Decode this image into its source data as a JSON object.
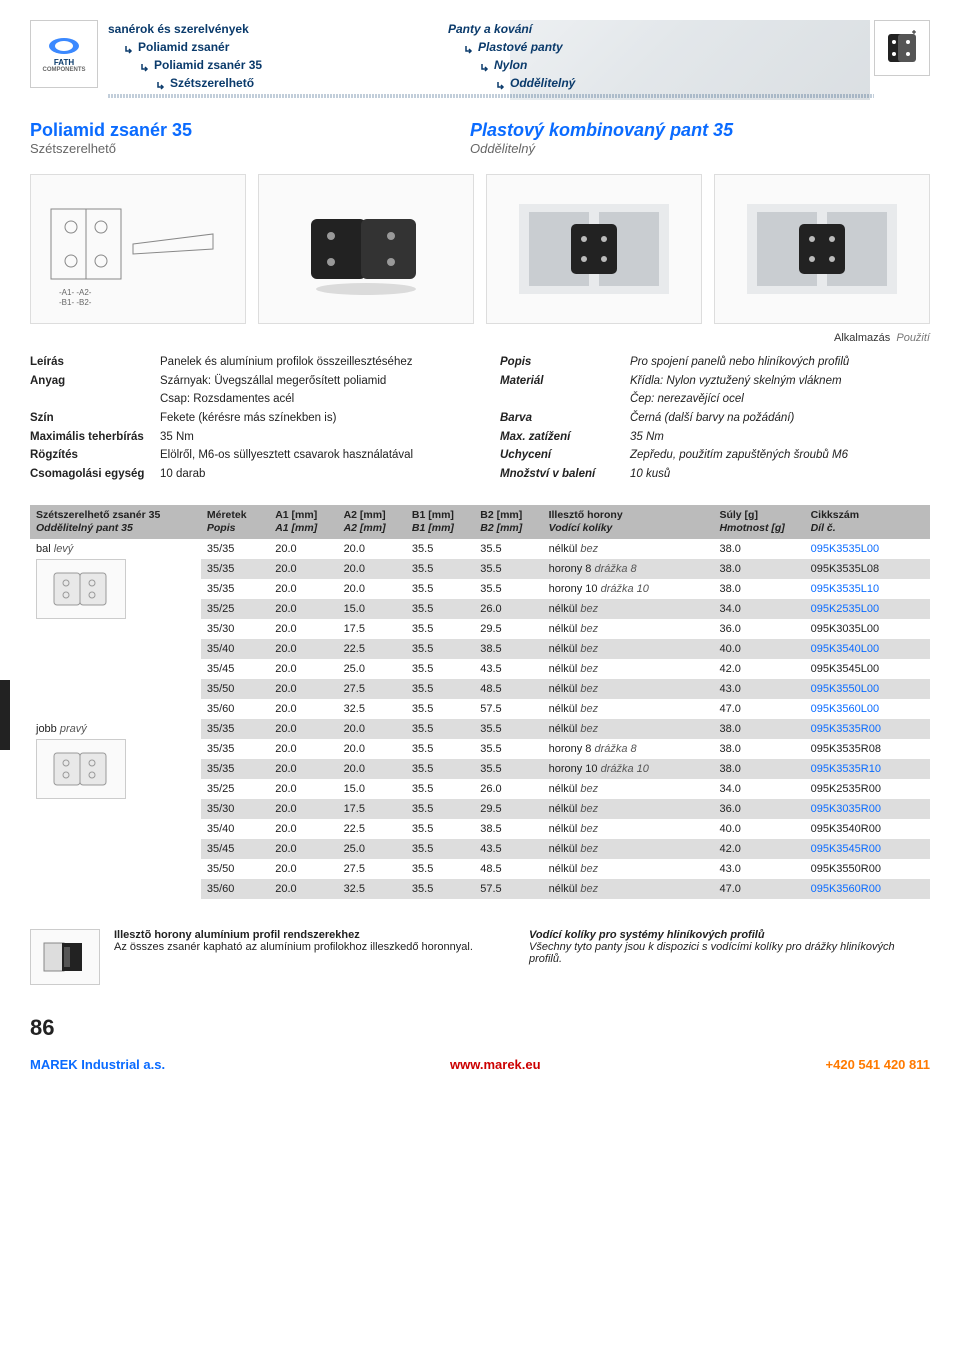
{
  "header": {
    "logo_line1": "FATH",
    "logo_line2": "COMPONENTS",
    "left": [
      "sanérok és szerelvények",
      "Poliamid zsanér",
      "Poliamid zsanér 35",
      "Szétszerelhető"
    ],
    "right": [
      "Panty a kování",
      "Plastové panty",
      "Nylon",
      "Oddělitelný"
    ]
  },
  "titles": {
    "hu_main": "Poliamid zsanér 35",
    "hu_sub": "Szétszerelhető",
    "cz_main": "Plastový kombinovaný pant 35",
    "cz_sub": "Oddělitelný"
  },
  "use_label": {
    "hu": "Alkalmazás",
    "cz": "Použití"
  },
  "spec_hu": {
    "rows": [
      {
        "label": "Leírás",
        "value": "Panelek és alumínium profilok összeillesztéséhez"
      },
      {
        "label": "Anyag",
        "value": "Szárnyak: Üvegszállal megerősített poliamid"
      },
      {
        "label": "",
        "value": "Csap: Rozsdamentes acél"
      },
      {
        "label": "Szín",
        "value": "Fekete (kérésre más színekben is)"
      },
      {
        "label": "Maximális teherbírás",
        "value": "35 Nm"
      },
      {
        "label": "Rögzítés",
        "value": "Elölről, M6-os süllyesztett csavarok használatával"
      },
      {
        "label": "Csomagolási egység",
        "value": "10 darab"
      }
    ]
  },
  "spec_cz": {
    "rows": [
      {
        "label": "Popis",
        "value": "Pro spojení panelů nebo hliníkových profilů"
      },
      {
        "label": "Materiál",
        "value": "Křídla: Nylon vyztužený skelným vláknem"
      },
      {
        "label": "",
        "value": "Čep: nerezavějící ocel"
      },
      {
        "label": "Barva",
        "value": "Černá (další barvy na požádání)"
      },
      {
        "label": "Max. zatížení",
        "value": "35 Nm"
      },
      {
        "label": "Uchycení",
        "value": "Zepředu, použitím zapuštěných šroubů M6"
      },
      {
        "label": "Množství v balení",
        "value": "10 kusů"
      }
    ]
  },
  "table": {
    "headers": [
      {
        "hu": "Szétszerelhető zsanér 35",
        "cz": "Oddělitelný pant 35"
      },
      {
        "hu": "Méretek",
        "cz": "Popis"
      },
      {
        "hu": "A1 [mm]",
        "cz": "A1 [mm]"
      },
      {
        "hu": "A2 [mm]",
        "cz": "A2 [mm]"
      },
      {
        "hu": "B1 [mm]",
        "cz": "B1 [mm]"
      },
      {
        "hu": "B2 [mm]",
        "cz": "B2 [mm]"
      },
      {
        "hu": "Illesztő horony",
        "cz": "Vodící kolíky"
      },
      {
        "hu": "Súly [g]",
        "cz": "Hmotnost [g]"
      },
      {
        "hu": "Cikkszám",
        "cz": "Díl č."
      }
    ],
    "groups": [
      {
        "name_hu": "bal",
        "name_cz": "levý",
        "rows": [
          [
            "35/35",
            "20.0",
            "20.0",
            "35.5",
            "35.5",
            "nélkül bez",
            "38.0",
            "095K3535L00",
            "b"
          ],
          [
            "35/35",
            "20.0",
            "20.0",
            "35.5",
            "35.5",
            "horony 8 drážka 8",
            "38.0",
            "095K3535L08",
            "k"
          ],
          [
            "35/35",
            "20.0",
            "20.0",
            "35.5",
            "35.5",
            "horony 10 drážka 10",
            "38.0",
            "095K3535L10",
            "b"
          ],
          [
            "35/25",
            "20.0",
            "15.0",
            "35.5",
            "26.0",
            "nélkül bez",
            "34.0",
            "095K2535L00",
            "b"
          ],
          [
            "35/30",
            "20.0",
            "17.5",
            "35.5",
            "29.5",
            "nélkül bez",
            "36.0",
            "095K3035L00",
            "k"
          ],
          [
            "35/40",
            "20.0",
            "22.5",
            "35.5",
            "38.5",
            "nélkül bez",
            "40.0",
            "095K3540L00",
            "b"
          ],
          [
            "35/45",
            "20.0",
            "25.0",
            "35.5",
            "43.5",
            "nélkül bez",
            "42.0",
            "095K3545L00",
            "k"
          ],
          [
            "35/50",
            "20.0",
            "27.5",
            "35.5",
            "48.5",
            "nélkül bez",
            "43.0",
            "095K3550L00",
            "b"
          ],
          [
            "35/60",
            "20.0",
            "32.5",
            "35.5",
            "57.5",
            "nélkül bez",
            "47.0",
            "095K3560L00",
            "b"
          ]
        ]
      },
      {
        "name_hu": "jobb",
        "name_cz": "pravý",
        "rows": [
          [
            "35/35",
            "20.0",
            "20.0",
            "35.5",
            "35.5",
            "nélkül bez",
            "38.0",
            "095K3535R00",
            "b"
          ],
          [
            "35/35",
            "20.0",
            "20.0",
            "35.5",
            "35.5",
            "horony 8 drážka 8",
            "38.0",
            "095K3535R08",
            "k"
          ],
          [
            "35/35",
            "20.0",
            "20.0",
            "35.5",
            "35.5",
            "horony 10 drážka 10",
            "38.0",
            "095K3535R10",
            "b"
          ],
          [
            "35/25",
            "20.0",
            "15.0",
            "35.5",
            "26.0",
            "nélkül bez",
            "34.0",
            "095K2535R00",
            "k"
          ],
          [
            "35/30",
            "20.0",
            "17.5",
            "35.5",
            "29.5",
            "nélkül bez",
            "36.0",
            "095K3035R00",
            "b"
          ],
          [
            "35/40",
            "20.0",
            "22.5",
            "35.5",
            "38.5",
            "nélkül bez",
            "40.0",
            "095K3540R00",
            "k"
          ],
          [
            "35/45",
            "20.0",
            "25.0",
            "35.5",
            "43.5",
            "nélkül bez",
            "42.0",
            "095K3545R00",
            "b"
          ],
          [
            "35/50",
            "20.0",
            "27.5",
            "35.5",
            "48.5",
            "nélkül bez",
            "43.0",
            "095K3550R00",
            "k"
          ],
          [
            "35/60",
            "20.0",
            "32.5",
            "35.5",
            "57.5",
            "nélkül bez",
            "47.0",
            "095K3560R00",
            "b"
          ]
        ]
      }
    ],
    "row_shading": {
      "bal": [
        "odd",
        "even",
        "odd",
        "even",
        "odd",
        "even",
        "odd",
        "even",
        "odd"
      ],
      "jobb": [
        "even",
        "odd",
        "even",
        "odd",
        "even",
        "odd",
        "even",
        "odd",
        "even"
      ]
    },
    "col_widths": [
      "150px",
      "60px",
      "60px",
      "60px",
      "60px",
      "60px",
      "150px",
      "80px",
      "110px"
    ],
    "header_bg": "#bbbbbb",
    "row_bg_odd": "#ffffff",
    "row_bg_even": "#dddddd",
    "code_color": "#0a6bff"
  },
  "note": {
    "hu_head": "Illesztõ horony alumínium profil rendszerekhez",
    "hu_body": "Az összes zsanér kapható az alumínium profilokhoz illeszkedő horonnyal.",
    "cz_head": "Vodící kolíky pro systémy hliníkových profilů",
    "cz_body": "Všechny tyto panty jsou k dispozici s vodícími kolíky pro drážky hliníkových profilů."
  },
  "page_num": "86",
  "footer": {
    "left": "MAREK Industrial a.s.",
    "mid": "www.marek.eu",
    "right": "+420 541 420 811"
  }
}
